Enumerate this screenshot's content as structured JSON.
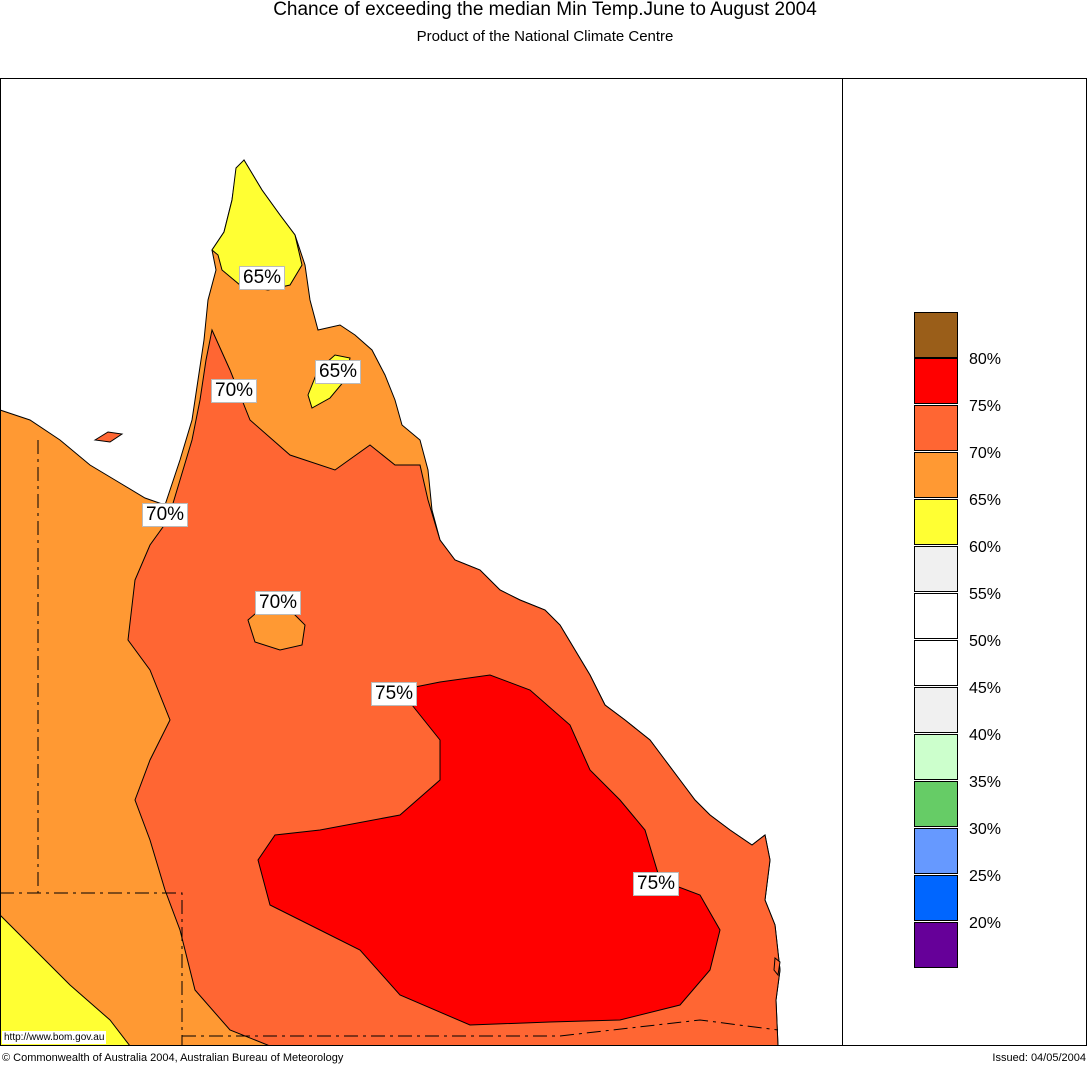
{
  "header": {
    "title": "Chance of exceeding the median Min Temp.June to August 2004",
    "subtitle": "Product of the National Climate Centre"
  },
  "map_labels": [
    {
      "text": "65%"
    },
    {
      "text": "65%"
    },
    {
      "text": "70%"
    },
    {
      "text": "70%"
    },
    {
      "text": "70%"
    },
    {
      "text": "75%"
    },
    {
      "text": "75%"
    }
  ],
  "legend": {
    "items": [
      {
        "color": "#9a5e19",
        "label": ""
      },
      {
        "color": "#ff0000",
        "label": "80%"
      },
      {
        "color": "#ff6633",
        "label": "75%"
      },
      {
        "color": "#ff9933",
        "label": "70%"
      },
      {
        "color": "#ffff33",
        "label": "65%"
      },
      {
        "color": "#f0f0f0",
        "label": "60%"
      },
      {
        "color": "#ffffff",
        "label": "55%"
      },
      {
        "color": "#ffffff",
        "label": "50%"
      },
      {
        "color": "#f0f0f0",
        "label": "45%"
      },
      {
        "color": "#ccffcc",
        "label": "40%"
      },
      {
        "color": "#66cc66",
        "label": "35%"
      },
      {
        "color": "#6699ff",
        "label": "30%"
      },
      {
        "color": "#0066ff",
        "label": "25%"
      },
      {
        "color": "#660099",
        "label": "20%"
      }
    ]
  },
  "footer": {
    "url": "http://www.bom.gov.au",
    "copyright": "© Commonwealth of Australia 2004, Australian Bureau of Meteorology",
    "issued": "Issued: 04/05/2004"
  }
}
